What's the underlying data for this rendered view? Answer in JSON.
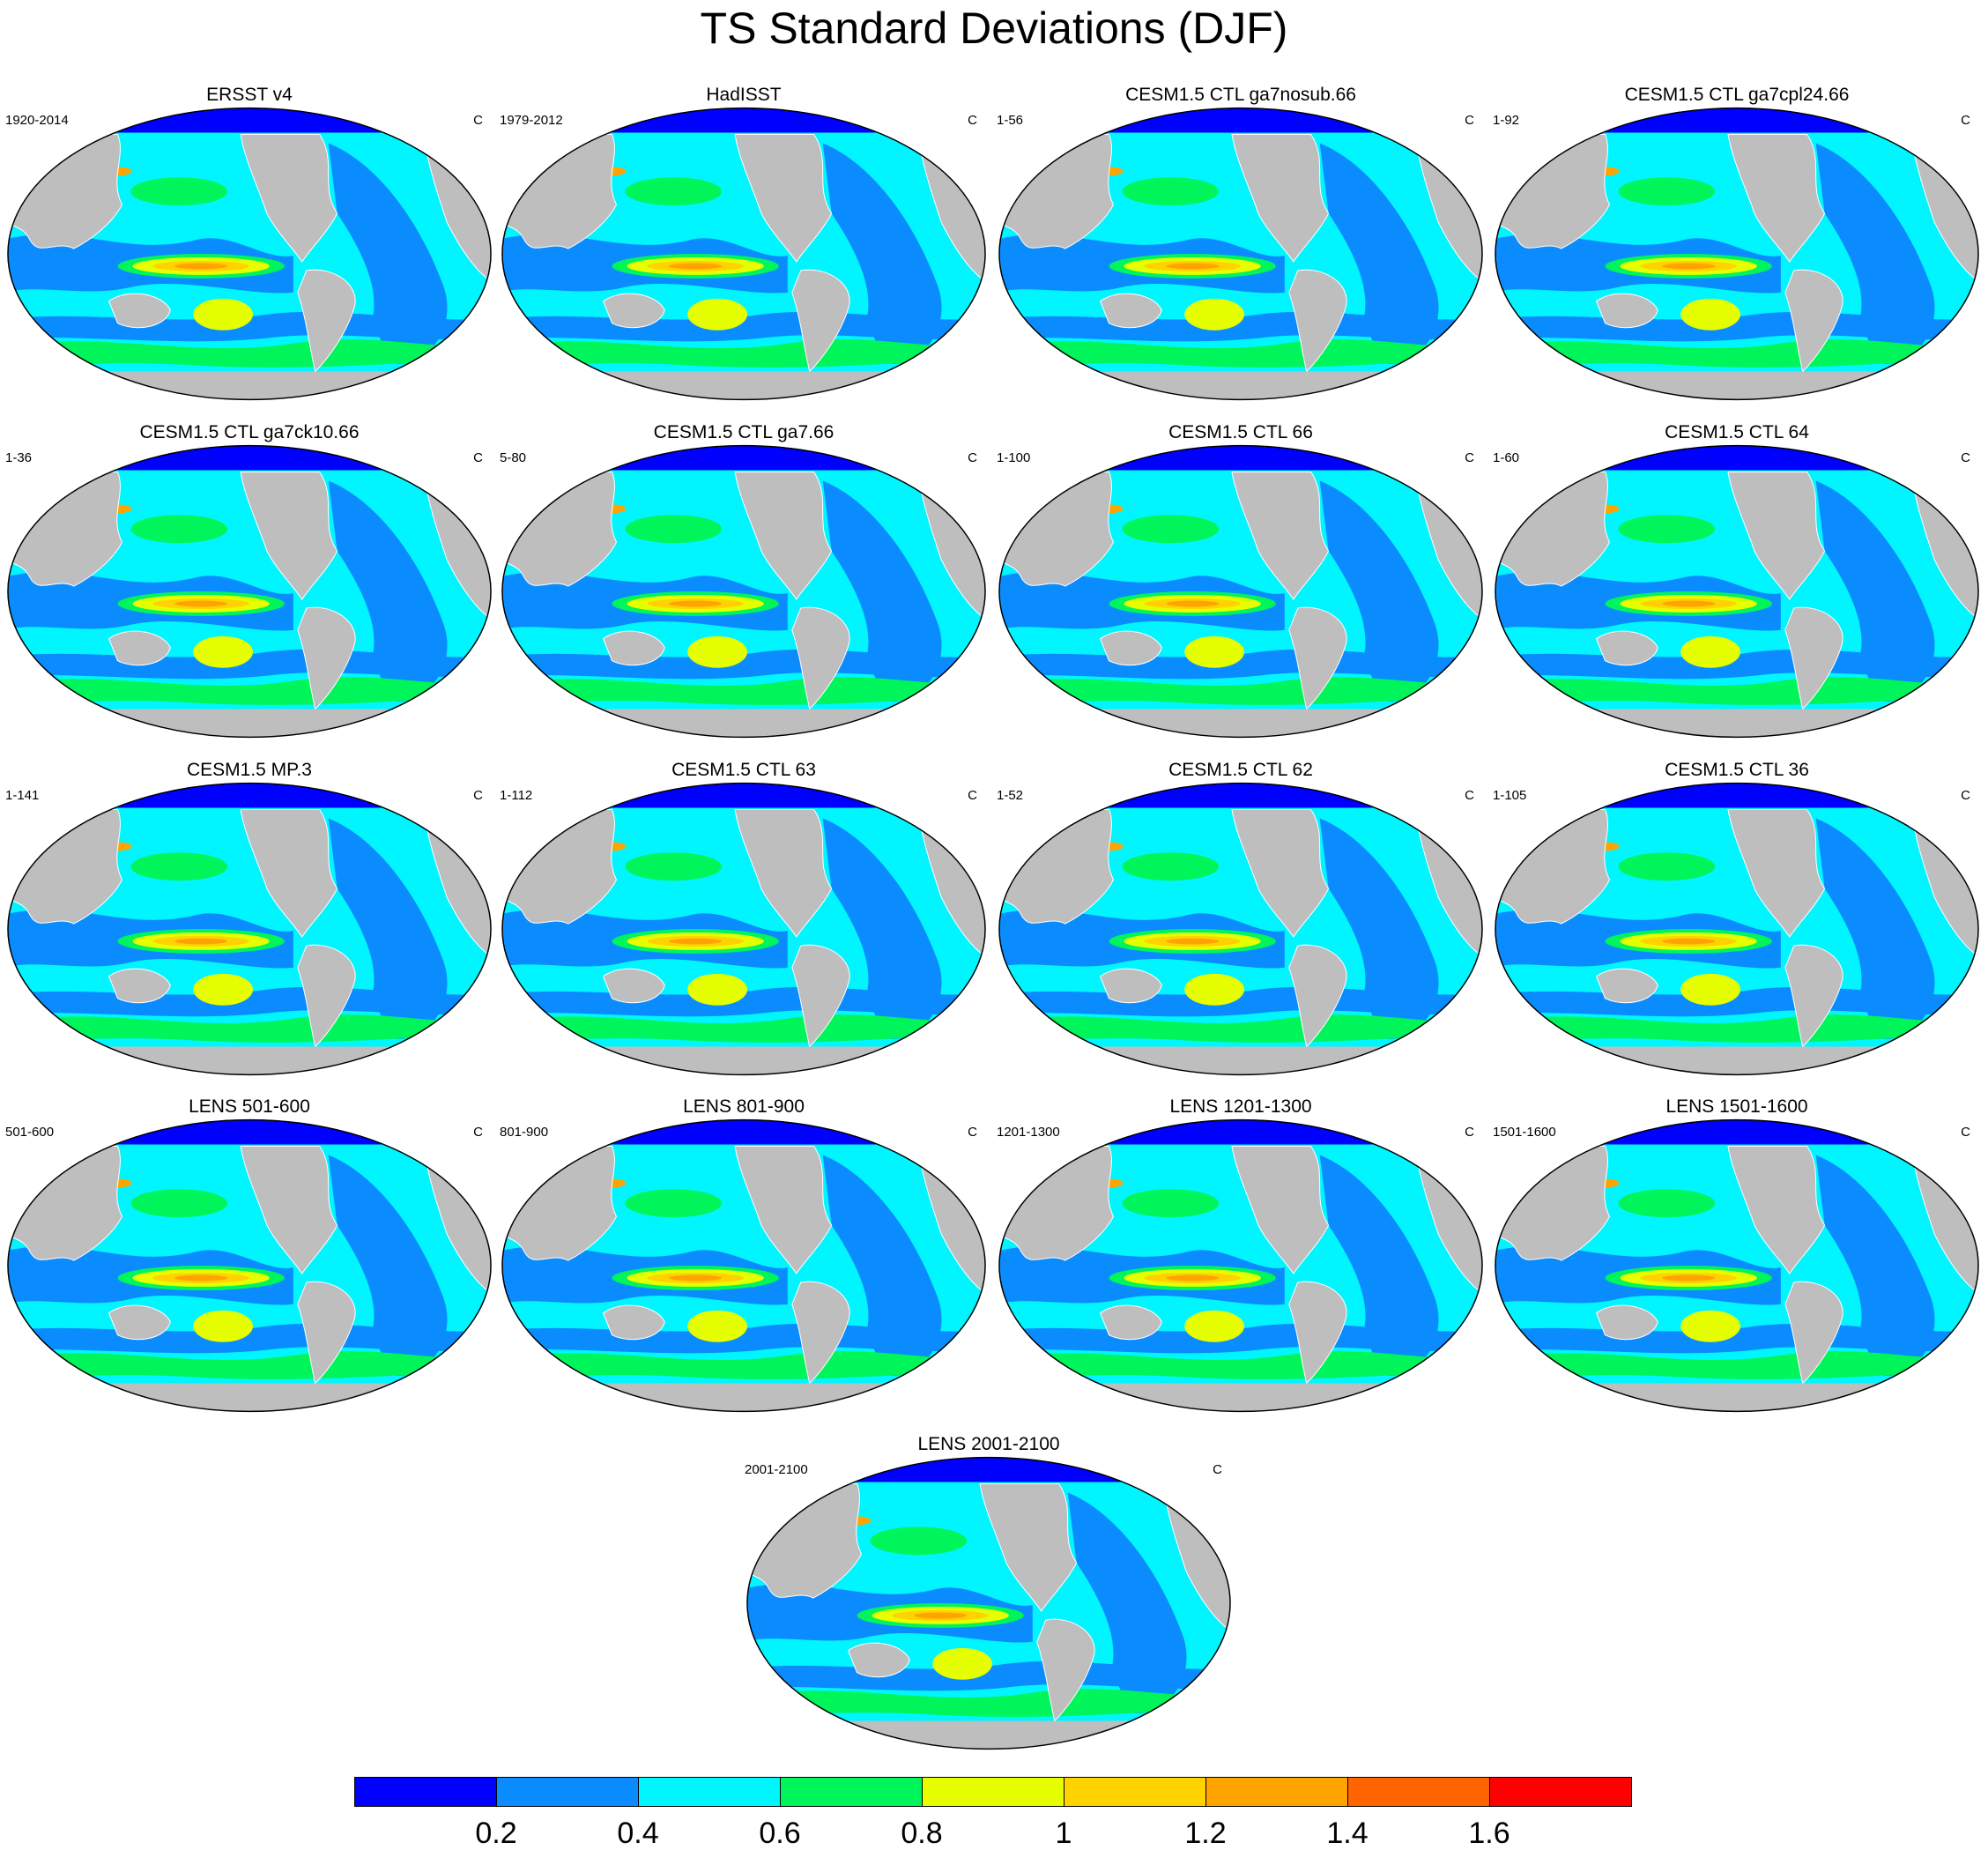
{
  "title": "TS Standard Deviations (DJF)",
  "panels": [
    {
      "title": "ERSST v4",
      "left": "1920-2014",
      "right": "C"
    },
    {
      "title": "HadISST",
      "left": "1979-2012",
      "right": "C"
    },
    {
      "title": "CESM1.5 CTL ga7nosub.66",
      "left": "1-56",
      "right": "C"
    },
    {
      "title": "CESM1.5 CTL ga7cpl24.66",
      "left": "1-92",
      "right": "C"
    },
    {
      "title": "CESM1.5 CTL ga7ck10.66",
      "left": "1-36",
      "right": "C"
    },
    {
      "title": "CESM1.5 CTL ga7.66",
      "left": "5-80",
      "right": "C"
    },
    {
      "title": "CESM1.5 CTL 66",
      "left": "1-100",
      "right": "C"
    },
    {
      "title": "CESM1.5 CTL 64",
      "left": "1-60",
      "right": "C"
    },
    {
      "title": "CESM1.5 MP.3",
      "left": "1-141",
      "right": "C"
    },
    {
      "title": "CESM1.5 CTL 63",
      "left": "1-112",
      "right": "C"
    },
    {
      "title": "CESM1.5 CTL 62",
      "left": "1-52",
      "right": "C"
    },
    {
      "title": "CESM1.5 CTL 36",
      "left": "1-105",
      "right": "C"
    },
    {
      "title": "LENS 501-600",
      "left": "501-600",
      "right": "C"
    },
    {
      "title": "LENS 801-900",
      "left": "801-900",
      "right": "C"
    },
    {
      "title": "LENS 1201-1300",
      "left": "1201-1300",
      "right": "C"
    },
    {
      "title": "LENS 1501-1600",
      "left": "1501-1600",
      "right": "C"
    }
  ],
  "final_panel": {
    "title": "LENS 2001-2100",
    "left": "2001-2100",
    "right": "C"
  },
  "colorbar": {
    "colors": [
      "#0000ff",
      "#0a8cff",
      "#00f5ff",
      "#00f55a",
      "#e6ff00",
      "#ffd200",
      "#ffa300",
      "#ff6400",
      "#ff0000"
    ],
    "labels": [
      "0.2",
      "0.4",
      "0.6",
      "0.8",
      "1",
      "1.2",
      "1.4",
      "1.6"
    ]
  },
  "colors": {
    "land": "#bebebe",
    "coastline": "#ffffff",
    "outline": "#000000"
  }
}
